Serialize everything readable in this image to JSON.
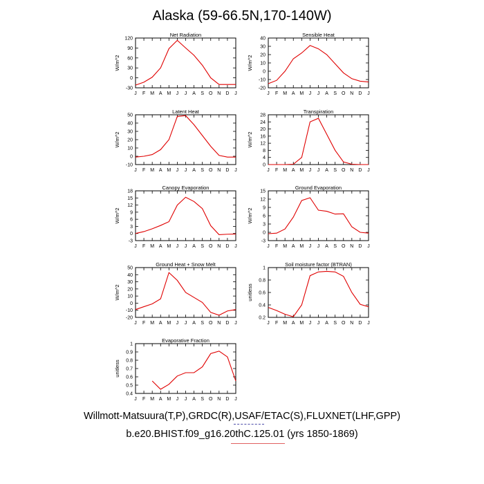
{
  "title": "Alaska (59-66.5N,170-140W)",
  "footer": {
    "line1": "Willmott-Matsuura(T,P),GRDC(R),USAF/ETAC(S),FLUXNET(LHF,GPP)",
    "line2": "b.e20.BHIST.f09_g16.20thC.125.01 (yrs 1850-1869)"
  },
  "colors": {
    "line": "#e00000",
    "axis": "#000000",
    "underline_blue": "#4a4aa8",
    "underline_red": "#e06060"
  },
  "chart_data": [
    {
      "type": "line",
      "title": "Net Radiation",
      "ylabel": "W/m^2",
      "categories": [
        "J",
        "F",
        "M",
        "A",
        "M",
        "J",
        "J",
        "A",
        "S",
        "O",
        "N",
        "D",
        "J"
      ],
      "ylim": [
        -30,
        120
      ],
      "yticks": [
        -30,
        0,
        30,
        60,
        90,
        120
      ],
      "values": [
        -22,
        -13,
        2,
        30,
        88,
        113,
        90,
        68,
        38,
        0,
        -20,
        -20,
        -20
      ]
    },
    {
      "type": "line",
      "title": "Sensible Heat",
      "ylabel": "W/m^2",
      "categories": [
        "J",
        "F",
        "M",
        "A",
        "M",
        "J",
        "J",
        "A",
        "S",
        "O",
        "N",
        "D",
        "J"
      ],
      "ylim": [
        -20,
        40
      ],
      "yticks": [
        -20,
        -10,
        0,
        10,
        20,
        30,
        40
      ],
      "values": [
        -15,
        -11,
        0,
        15,
        22,
        31,
        27,
        20,
        9,
        -2,
        -9,
        -12,
        -13
      ]
    },
    {
      "type": "line",
      "title": "Latent Heat",
      "ylabel": "W/m^2",
      "categories": [
        "J",
        "F",
        "M",
        "A",
        "M",
        "J",
        "J",
        "A",
        "S",
        "O",
        "N",
        "D",
        "J"
      ],
      "ylim": [
        -10,
        50
      ],
      "yticks": [
        -10,
        0,
        10,
        20,
        30,
        40,
        50
      ],
      "values": [
        -1,
        0,
        2,
        8,
        20,
        48,
        49,
        38,
        25,
        12,
        1,
        -1,
        -1
      ]
    },
    {
      "type": "line",
      "title": "Transpiration",
      "ylabel": "W/m^2",
      "categories": [
        "J",
        "F",
        "M",
        "A",
        "M",
        "J",
        "J",
        "A",
        "S",
        "O",
        "N",
        "D",
        "J"
      ],
      "ylim": [
        0,
        28
      ],
      "yticks": [
        0,
        4,
        8,
        12,
        16,
        20,
        24,
        28
      ],
      "values": [
        0,
        0,
        0,
        0.2,
        4,
        24,
        26,
        17,
        8,
        1.5,
        0.2,
        0,
        0
      ]
    },
    {
      "type": "line",
      "title": "Canopy Evaporation",
      "ylabel": "W/m^2",
      "categories": [
        "J",
        "F",
        "M",
        "A",
        "M",
        "J",
        "J",
        "A",
        "S",
        "O",
        "N",
        "D",
        "J"
      ],
      "ylim": [
        -3,
        18
      ],
      "yticks": [
        -3,
        0,
        3,
        6,
        9,
        12,
        15,
        18
      ],
      "values": [
        0,
        0.8,
        2,
        3.4,
        5,
        12,
        15.3,
        13.5,
        10.5,
        3.3,
        -0.5,
        -0.3,
        -0.2
      ]
    },
    {
      "type": "line",
      "title": "Ground Evaporation",
      "ylabel": "W/m^2",
      "categories": [
        "J",
        "F",
        "M",
        "A",
        "M",
        "J",
        "J",
        "A",
        "S",
        "O",
        "N",
        "D",
        "J"
      ],
      "ylim": [
        -3,
        15
      ],
      "yticks": [
        -3,
        0,
        3,
        6,
        9,
        12,
        15
      ],
      "values": [
        -0.5,
        -0.3,
        1.2,
        5.5,
        11.5,
        12.5,
        8,
        7.6,
        6.6,
        6.7,
        2,
        0,
        -0.3
      ]
    },
    {
      "type": "line",
      "title": "Ground Heat + Snow Melt",
      "ylabel": "W/m^2",
      "categories": [
        "J",
        "F",
        "M",
        "A",
        "M",
        "J",
        "J",
        "A",
        "S",
        "O",
        "N",
        "D",
        "J"
      ],
      "ylim": [
        -20,
        50
      ],
      "yticks": [
        -20,
        -10,
        0,
        10,
        20,
        30,
        40,
        50
      ],
      "values": [
        -9,
        -5,
        -1,
        6,
        43,
        32,
        15,
        8,
        1,
        -13,
        -17,
        -11,
        -9
      ]
    },
    {
      "type": "line",
      "title": "Soil moisture factor (BTRAN)",
      "ylabel": "unitless",
      "categories": [
        "J",
        "F",
        "M",
        "A",
        "M",
        "J",
        "J",
        "A",
        "S",
        "O",
        "N",
        "D",
        "J"
      ],
      "ylim": [
        0.2,
        1.0
      ],
      "yticks": [
        0.2,
        0.4,
        0.6,
        0.8,
        1.0
      ],
      "values": [
        0.36,
        0.31,
        0.25,
        0.21,
        0.4,
        0.87,
        0.93,
        0.94,
        0.93,
        0.86,
        0.6,
        0.41,
        0.37
      ]
    },
    {
      "type": "line",
      "title": "Evaporative Fraction",
      "ylabel": "unitless",
      "categories": [
        "J",
        "F",
        "M",
        "A",
        "M",
        "J",
        "J",
        "A",
        "S",
        "O",
        "N",
        "D",
        "J"
      ],
      "ylim": [
        0.4,
        1.0
      ],
      "yticks": [
        0.4,
        0.5,
        0.6,
        0.7,
        0.8,
        0.9,
        1.0
      ],
      "values": [
        null,
        null,
        0.55,
        0.45,
        0.51,
        0.61,
        0.65,
        0.65,
        0.72,
        0.88,
        0.91,
        0.84,
        0.55
      ]
    }
  ]
}
